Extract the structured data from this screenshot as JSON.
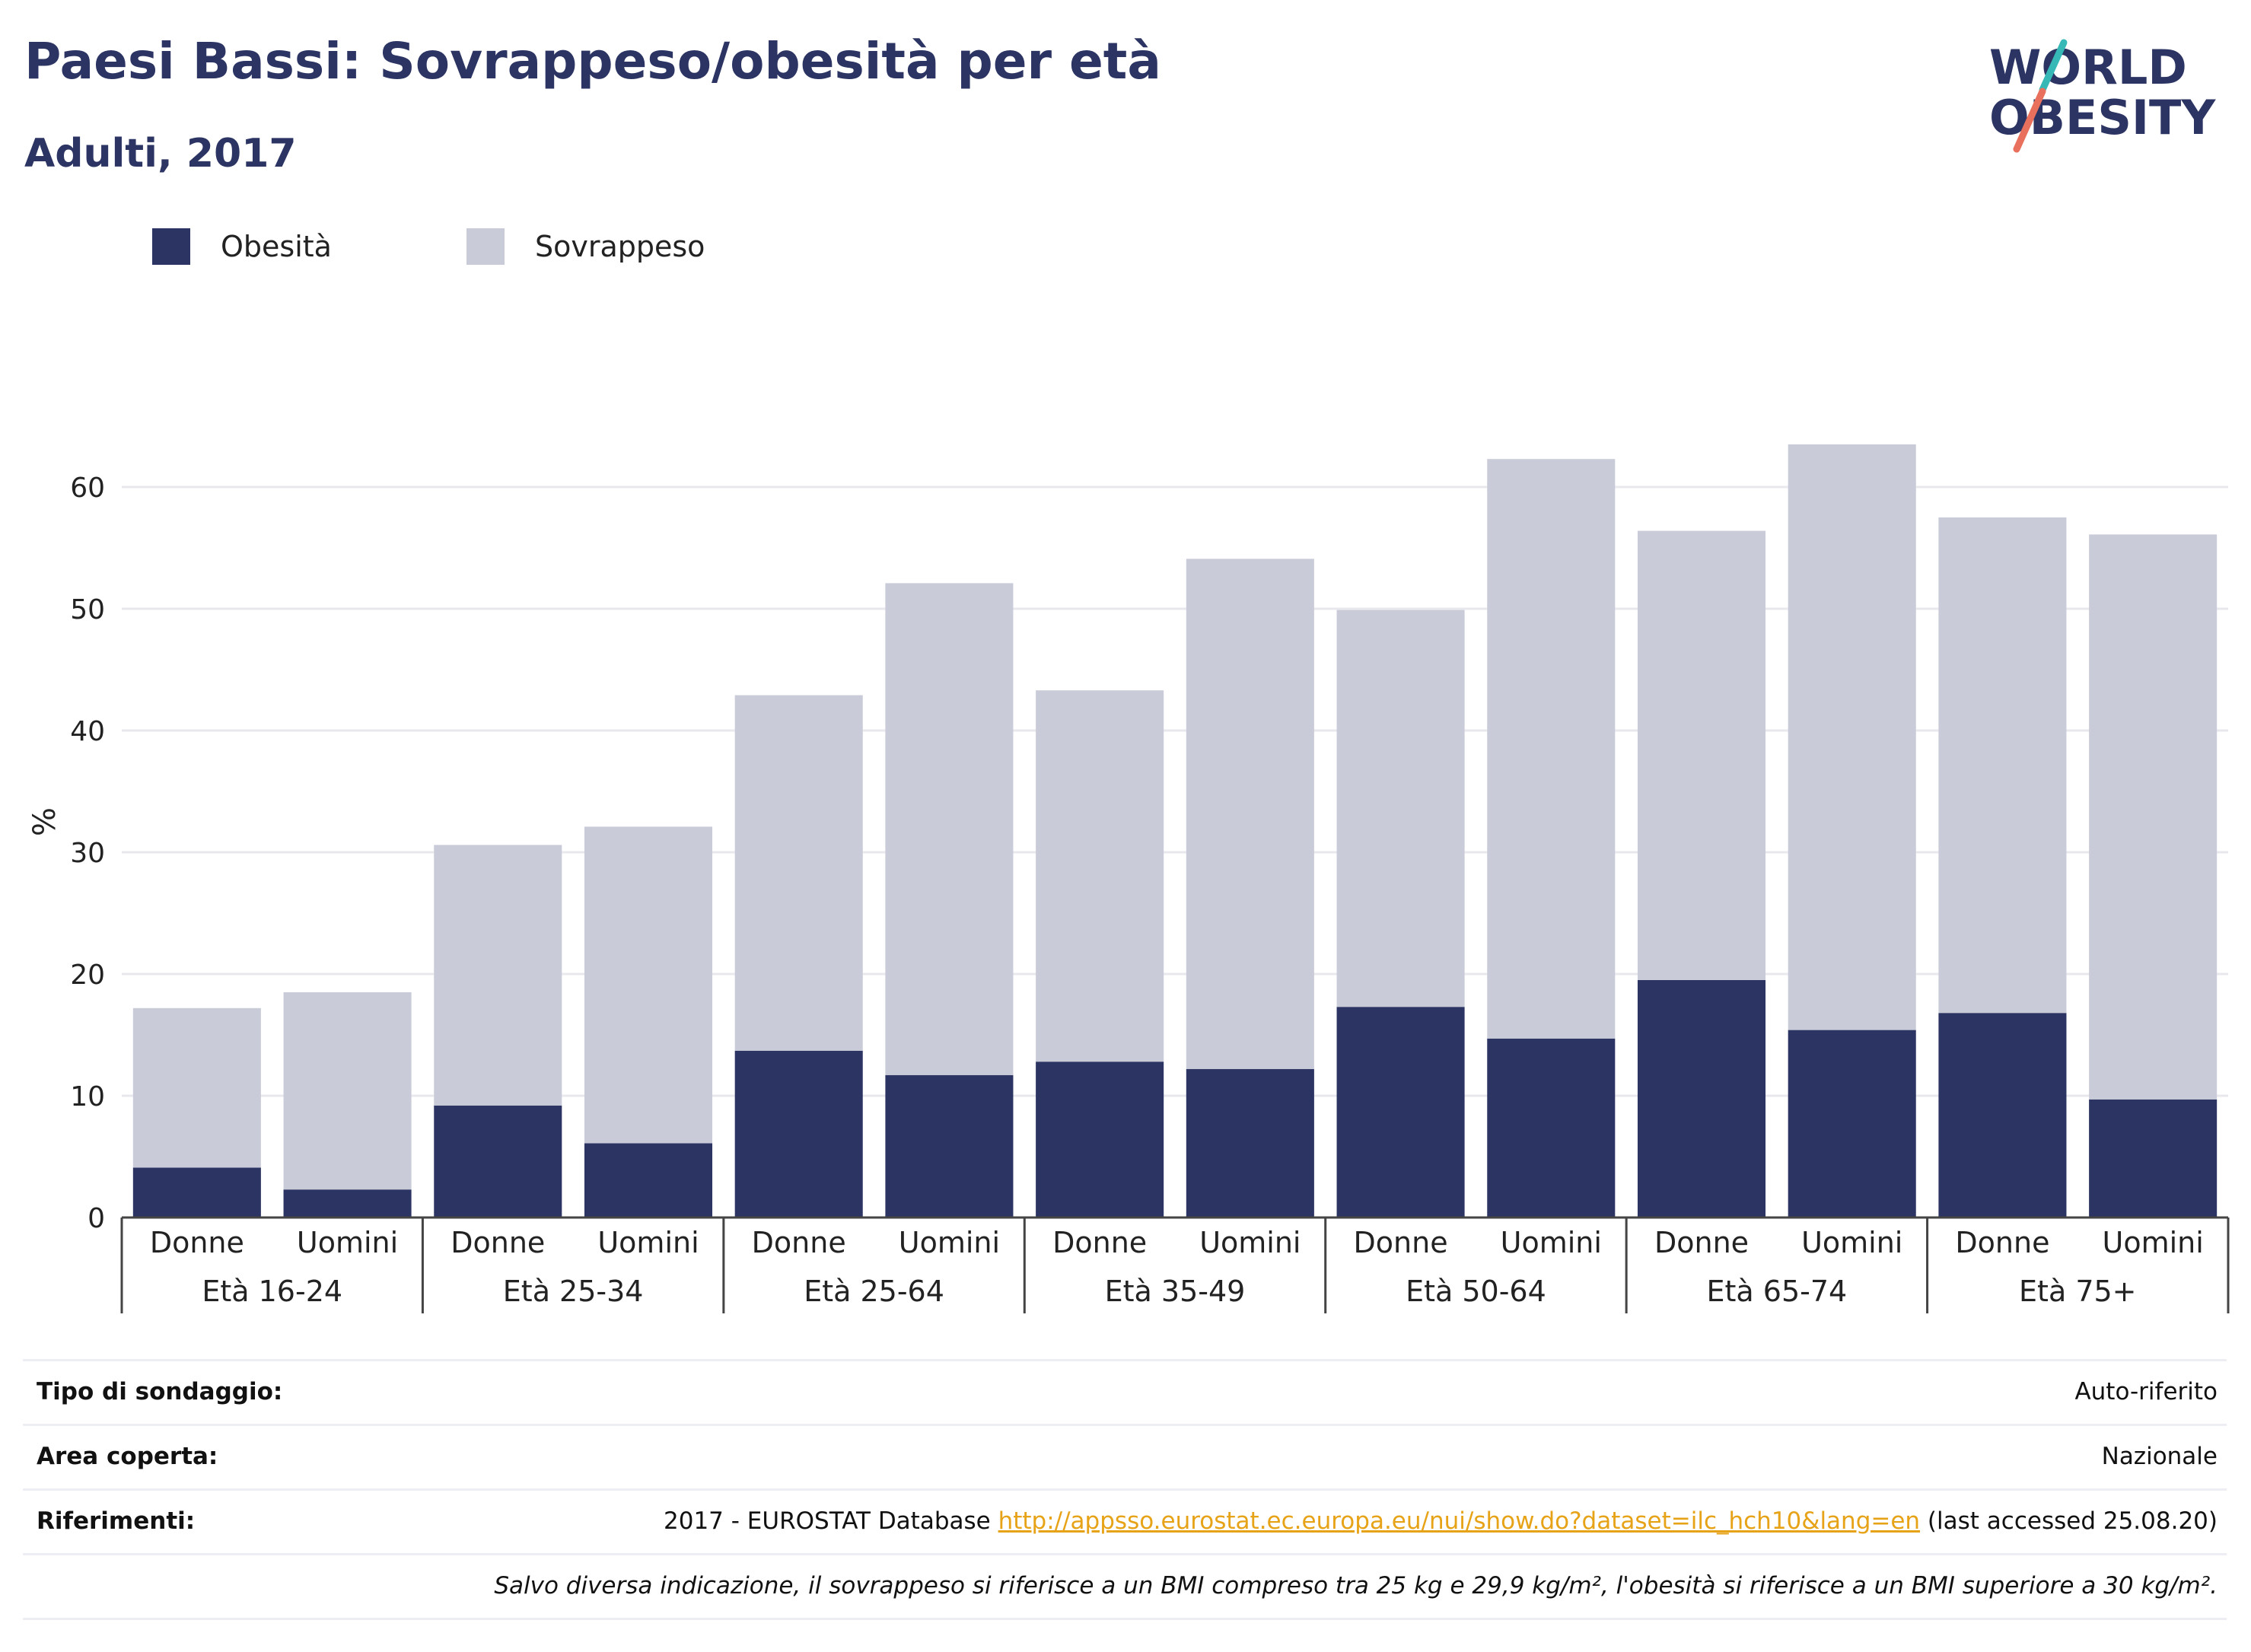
{
  "header": {
    "title": "Paesi Bassi: Sovrappeso/obesità per età",
    "subtitle": "Adulti, 2017"
  },
  "logo": {
    "line1": "WORLD",
    "line2": "OBESITY",
    "colors": {
      "text": "#2b3462",
      "slash_top": "#36b8b7",
      "slash_bottom": "#e8705c"
    }
  },
  "legend": [
    {
      "label": "Obesità",
      "color": "#2b3462"
    },
    {
      "label": "Sovrappeso",
      "color": "#c9ccd8"
    }
  ],
  "chart_data": {
    "type": "bar",
    "stacked": true,
    "ylabel": "%",
    "ylim": [
      0,
      65
    ],
    "yticks": [
      0,
      10,
      20,
      30,
      40,
      50,
      60
    ],
    "grid": true,
    "legend_position": "top-left",
    "groups": [
      "Età 16-24",
      "Età 25-34",
      "Età 25-64",
      "Età 35-49",
      "Età 50-64",
      "Età 65-74",
      "Età 75+"
    ],
    "subcategories": [
      "Donne",
      "Uomini"
    ],
    "categories": [
      "Età 16-24 Donne",
      "Età 16-24 Uomini",
      "Età 25-34 Donne",
      "Età 25-34 Uomini",
      "Età 25-64 Donne",
      "Età 25-64 Uomini",
      "Età 35-49 Donne",
      "Età 35-49 Uomini",
      "Età 50-64 Donne",
      "Età 50-64 Uomini",
      "Età 65-74 Donne",
      "Età 65-74 Uomini",
      "Età 75+ Donne",
      "Età 75+ Uomini"
    ],
    "series": [
      {
        "name": "Obesità",
        "color": "#2b3462",
        "values": [
          4.1,
          2.3,
          9.2,
          6.1,
          13.7,
          11.7,
          12.8,
          12.2,
          17.3,
          14.7,
          19.5,
          15.4,
          16.8,
          9.7
        ]
      },
      {
        "name": "Sovrappeso",
        "color": "#c9ccd8",
        "values": [
          13.1,
          16.2,
          21.4,
          26.0,
          29.2,
          40.4,
          30.5,
          41.9,
          32.6,
          47.6,
          36.9,
          48.1,
          40.7,
          46.4
        ]
      }
    ]
  },
  "info_table": [
    {
      "key": "Tipo di sondaggio:",
      "value": "Auto-riferito"
    },
    {
      "key": "Area coperta:",
      "value": "Nazionale"
    },
    {
      "key": "Riferimenti:",
      "value_prefix": "2017 - EUROSTAT Database ",
      "link": "http://appsso.eurostat.ec.europa.eu/nui/show.do?dataset=ilc_hch10&lang=en",
      "value_suffix": " (last accessed 25.08.20)"
    },
    {
      "key": "",
      "note": "Salvo diversa indicazione, il sovrappeso si riferisce a un BMI compreso tra 25 kg e 29,9 kg/m², l'obesità si riferisce a un BMI superiore a 30 kg/m²."
    }
  ]
}
